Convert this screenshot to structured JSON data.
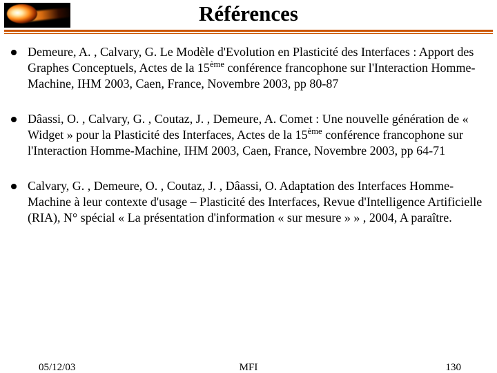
{
  "title": "Références",
  "colors": {
    "rule": "#cc5500",
    "text": "#000000",
    "background": "#ffffff",
    "bullet": "#000000"
  },
  "typography": {
    "title_fontsize_pt": 31,
    "title_weight": "bold",
    "body_fontsize_pt": 18,
    "footer_fontsize_pt": 15,
    "font_family": "Times New Roman"
  },
  "references": [
    {
      "text": "Demeure, A. , Calvary, G. Le Modèle d'Evolution en Plasticité des Interfaces : Apport des Graphes Conceptuels, Actes de la 15ème conférence francophone sur l'Interaction Homme-Machine, IHM 2003, Caen, France, Novembre 2003, pp 80-87"
    },
    {
      "text": "Dâassi, O. , Calvary, G. , Coutaz, J. , Demeure, A. Comet : Une nouvelle génération de « Widget » pour la Plasticité des Interfaces, Actes de la 15ème conférence francophone sur l'Interaction Homme-Machine, IHM 2003, Caen, France, Novembre 2003, pp 64-71"
    },
    {
      "text": "Calvary, G. , Demeure, O. , Coutaz, J. , Dâassi, O. Adaptation des Interfaces Homme-Machine à leur contexte d'usage – Plasticité des Interfaces, Revue d'Intelligence Artificielle (RIA), N° spécial « La présentation d'information « sur mesure » » , 2004, A paraître."
    }
  ],
  "footer": {
    "date": "05/12/03",
    "center": "MFI",
    "page": "130"
  },
  "logo": {
    "semantic": "comet-image",
    "background": "#000000"
  }
}
